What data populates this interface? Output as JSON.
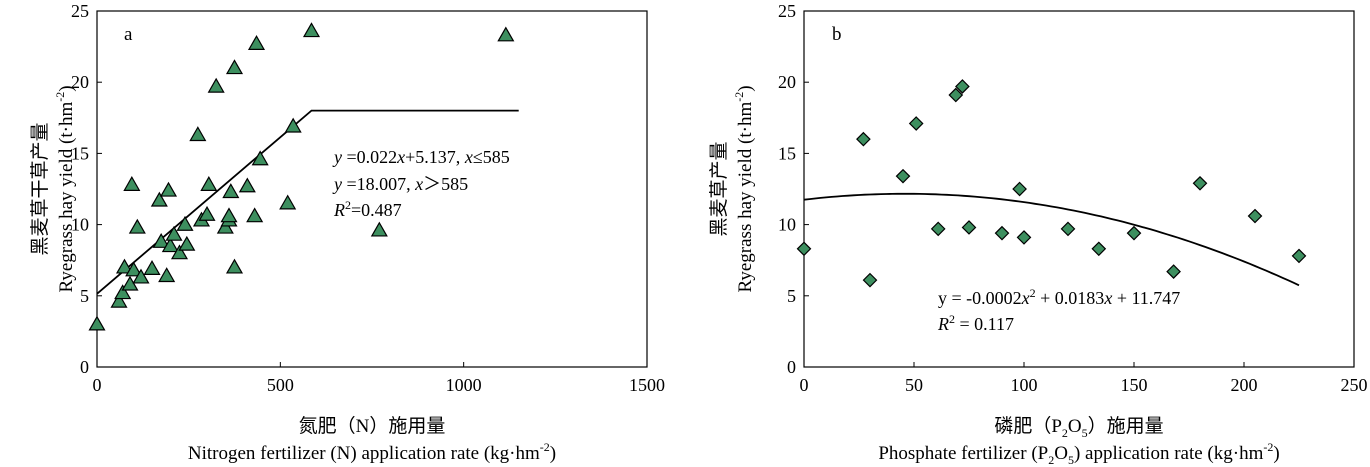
{
  "chart_data": [
    {
      "panel": "a",
      "type": "scatter",
      "marker": "triangle",
      "marker_color": "#3d8f5f",
      "xlabel_cn": "氮肥（N）施用量",
      "xlabel_en": "Nitrogen fertilizer (N) application rate (kg·hm",
      "xlabel_unit_sup": "-2",
      "xlabel_unit_close": ")",
      "ylabel_cn": "黑麦草干草产量",
      "ylabel_en": "Ryegrass hay yield (t·hm",
      "ylabel_unit_sup": "-2",
      "ylabel_unit_close": ")",
      "xlim": [
        0,
        1500
      ],
      "ylim": [
        0,
        25
      ],
      "xticks": [
        0,
        500,
        1000,
        1500
      ],
      "yticks": [
        0,
        5,
        10,
        15,
        20,
        25
      ],
      "points": [
        {
          "x": 0,
          "y": 3.0
        },
        {
          "x": 60,
          "y": 4.6
        },
        {
          "x": 70,
          "y": 5.2
        },
        {
          "x": 75,
          "y": 7.0
        },
        {
          "x": 90,
          "y": 5.8
        },
        {
          "x": 95,
          "y": 12.8
        },
        {
          "x": 100,
          "y": 6.8
        },
        {
          "x": 110,
          "y": 9.8
        },
        {
          "x": 120,
          "y": 6.3
        },
        {
          "x": 150,
          "y": 6.9
        },
        {
          "x": 170,
          "y": 11.7
        },
        {
          "x": 175,
          "y": 8.8
        },
        {
          "x": 190,
          "y": 6.4
        },
        {
          "x": 195,
          "y": 12.4
        },
        {
          "x": 200,
          "y": 8.5
        },
        {
          "x": 210,
          "y": 9.3
        },
        {
          "x": 225,
          "y": 8.0
        },
        {
          "x": 240,
          "y": 10.0
        },
        {
          "x": 245,
          "y": 8.6
        },
        {
          "x": 275,
          "y": 16.3
        },
        {
          "x": 285,
          "y": 10.3
        },
        {
          "x": 300,
          "y": 10.7
        },
        {
          "x": 305,
          "y": 12.8
        },
        {
          "x": 325,
          "y": 19.7
        },
        {
          "x": 350,
          "y": 9.8
        },
        {
          "x": 360,
          "y": 10.3
        },
        {
          "x": 360,
          "y": 10.6
        },
        {
          "x": 365,
          "y": 12.3
        },
        {
          "x": 375,
          "y": 21.0
        },
        {
          "x": 375,
          "y": 7.0
        },
        {
          "x": 410,
          "y": 12.7
        },
        {
          "x": 430,
          "y": 10.6
        },
        {
          "x": 435,
          "y": 22.7
        },
        {
          "x": 445,
          "y": 14.6
        },
        {
          "x": 520,
          "y": 11.5
        },
        {
          "x": 535,
          "y": 16.9
        },
        {
          "x": 585,
          "y": 23.6
        },
        {
          "x": 770,
          "y": 9.6
        },
        {
          "x": 1115,
          "y": 23.3
        }
      ],
      "fit": {
        "type": "linear-plateau",
        "slope": 0.022,
        "intercept": 5.137,
        "breakpoint": 585,
        "plateau": 18.007,
        "x_range": [
          0,
          1150
        ]
      },
      "annotations": {
        "label": "a",
        "eq1_y": "y",
        "eq1_rest": " =0.022",
        "eq1_x": "x",
        "eq1_tail": "+5.137, ",
        "eq1_x2": "x",
        "eq1_cond": "≤585",
        "eq2_y": "y",
        "eq2_rest": " =18.007, ",
        "eq2_x": "x",
        "eq2_cond": "＞585",
        "r2_R": "R",
        "r2_sup": "2",
        "r2_val": "=0.487"
      }
    },
    {
      "panel": "b",
      "type": "scatter",
      "marker": "diamond",
      "marker_color": "#3d8f5f",
      "xlabel_cn": "磷肥（P",
      "xlabel_cn_sub1": "2",
      "xlabel_cn_mid": "O",
      "xlabel_cn_sub2": "5",
      "xlabel_cn_tail": "）施用量",
      "xlabel_en": "Phosphate fertilizer (P",
      "xlabel_en_sub1": "2",
      "xlabel_en_mid": "O",
      "xlabel_en_sub2": "5",
      "xlabel_en_tail": ")  application rate (kg·hm",
      "xlabel_unit_sup": "-2",
      "xlabel_unit_close": ")",
      "ylabel_cn": "黑麦草产量",
      "ylabel_en": "Ryegrass hay yield (t·hm",
      "ylabel_unit_sup": "-2",
      "ylabel_unit_close": ")",
      "xlim": [
        0,
        250
      ],
      "ylim": [
        0,
        25
      ],
      "xticks": [
        0,
        50,
        100,
        150,
        200,
        250
      ],
      "yticks": [
        0,
        5,
        10,
        15,
        20,
        25
      ],
      "points": [
        {
          "x": 0,
          "y": 8.3
        },
        {
          "x": 27,
          "y": 16.0
        },
        {
          "x": 30,
          "y": 6.1
        },
        {
          "x": 45,
          "y": 13.4
        },
        {
          "x": 51,
          "y": 17.1
        },
        {
          "x": 61,
          "y": 9.7
        },
        {
          "x": 69,
          "y": 19.1
        },
        {
          "x": 72,
          "y": 19.7
        },
        {
          "x": 75,
          "y": 9.8
        },
        {
          "x": 90,
          "y": 9.4
        },
        {
          "x": 98,
          "y": 12.5
        },
        {
          "x": 100,
          "y": 9.1
        },
        {
          "x": 120,
          "y": 9.7
        },
        {
          "x": 134,
          "y": 8.3
        },
        {
          "x": 150,
          "y": 9.4
        },
        {
          "x": 168,
          "y": 6.7
        },
        {
          "x": 180,
          "y": 12.9
        },
        {
          "x": 205,
          "y": 10.6
        },
        {
          "x": 225,
          "y": 7.8
        }
      ],
      "fit": {
        "type": "quadratic",
        "a": -0.0002,
        "b": 0.0183,
        "c": 11.747,
        "x_range": [
          0,
          225
        ]
      },
      "annotations": {
        "label": "b",
        "eq1_pre": "y = -0.0002",
        "eq1_x": "x",
        "eq1_sup": "2",
        "eq1_post": " + 0.0183",
        "eq1_x2": "x",
        "eq1_tail": " + 11.747",
        "r2_R": "R",
        "r2_sup": "2",
        "r2_val": " = 0.117"
      }
    }
  ]
}
